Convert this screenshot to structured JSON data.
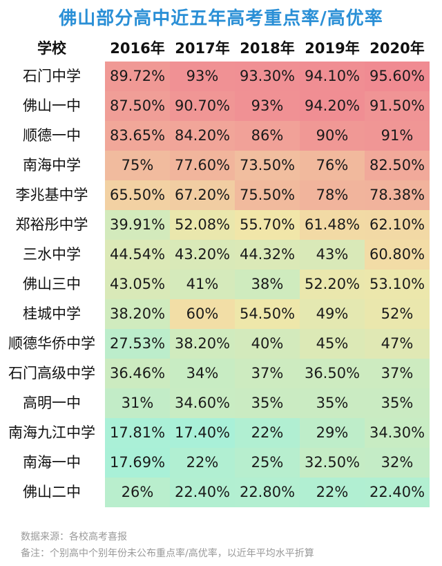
{
  "chart_data": {
    "type": "table",
    "title": "佛山部分高中近五年高考重点率/高优率",
    "corner_label": "学校",
    "years": [
      "2016年",
      "2017年",
      "2018年",
      "2019年",
      "2020年"
    ],
    "rows": [
      {
        "school": "石门中学",
        "values": [
          "89.72%",
          "93%",
          "93.30%",
          "94.10%",
          "95.60%"
        ],
        "nums": [
          89.72,
          93,
          93.3,
          94.1,
          95.6
        ]
      },
      {
        "school": "佛山一中",
        "values": [
          "87.50%",
          "90.70%",
          "93%",
          "94.20%",
          "91.50%"
        ],
        "nums": [
          87.5,
          90.7,
          93,
          94.2,
          91.5
        ]
      },
      {
        "school": "顺德一中",
        "values": [
          "83.65%",
          "84.20%",
          "86%",
          "90%",
          "91%"
        ],
        "nums": [
          83.65,
          84.2,
          86,
          90,
          91
        ]
      },
      {
        "school": "南海中学",
        "values": [
          "75%",
          "77.60%",
          "73.50%",
          "76%",
          "82.50%"
        ],
        "nums": [
          75,
          77.6,
          73.5,
          76,
          82.5
        ]
      },
      {
        "school": "李兆基中学",
        "values": [
          "65.50%",
          "67.20%",
          "75.50%",
          "78%",
          "78.38%"
        ],
        "nums": [
          65.5,
          67.2,
          75.5,
          78,
          78.38
        ]
      },
      {
        "school": "郑裕彤中学",
        "values": [
          "39.91%",
          "52.08%",
          "55.70%",
          "61.48%",
          "62.10%"
        ],
        "nums": [
          39.91,
          52.08,
          55.7,
          61.48,
          62.1
        ]
      },
      {
        "school": "三水中学",
        "values": [
          "44.54%",
          "43.20%",
          "44.32%",
          "43%",
          "60.80%"
        ],
        "nums": [
          44.54,
          43.2,
          44.32,
          43,
          60.8
        ]
      },
      {
        "school": "佛山三中",
        "values": [
          "43.05%",
          "41%",
          "38%",
          "52.20%",
          "53.10%"
        ],
        "nums": [
          43.05,
          41,
          38,
          52.2,
          53.1
        ]
      },
      {
        "school": "桂城中学",
        "values": [
          "38.20%",
          "60%",
          "54.50%",
          "49%",
          "52%"
        ],
        "nums": [
          38.2,
          60,
          54.5,
          49,
          52
        ]
      },
      {
        "school": "顺德华侨中学",
        "values": [
          "27.53%",
          "38.20%",
          "40%",
          "45%",
          "47%"
        ],
        "nums": [
          27.53,
          38.2,
          40,
          45,
          47
        ]
      },
      {
        "school": "石门高级中学",
        "values": [
          "36.46%",
          "34%",
          "37%",
          "36.50%",
          "37%"
        ],
        "nums": [
          36.46,
          34,
          37,
          36.5,
          37
        ]
      },
      {
        "school": "高明一中",
        "values": [
          "31%",
          "34.60%",
          "35%",
          "35%",
          "35%"
        ],
        "nums": [
          31,
          34.6,
          35,
          35,
          35
        ]
      },
      {
        "school": "南海九江中学",
        "values": [
          "17.81%",
          "17.40%",
          "22%",
          "29%",
          "34.30%"
        ],
        "nums": [
          17.81,
          17.4,
          22,
          29,
          34.3
        ]
      },
      {
        "school": "南海一中",
        "values": [
          "17.69%",
          "22%",
          "25%",
          "32.50%",
          "32%"
        ],
        "nums": [
          17.69,
          22,
          25,
          32.5,
          32
        ]
      },
      {
        "school": "佛山二中",
        "values": [
          "26%",
          "22.40%",
          "22.80%",
          "22%",
          "22.40%"
        ],
        "nums": [
          26,
          22.4,
          22.8,
          22,
          22.4
        ]
      }
    ],
    "color_scale": {
      "low": "#a8f0d8",
      "mid": "#f2e6a8",
      "high": "#f08a92",
      "min": 17,
      "max": 96
    }
  },
  "notes": {
    "source": "数据来源：各校高考喜报",
    "remark": "备注：个别高中个别年份未公布重点率/高优率，以近年平均水平折算"
  }
}
